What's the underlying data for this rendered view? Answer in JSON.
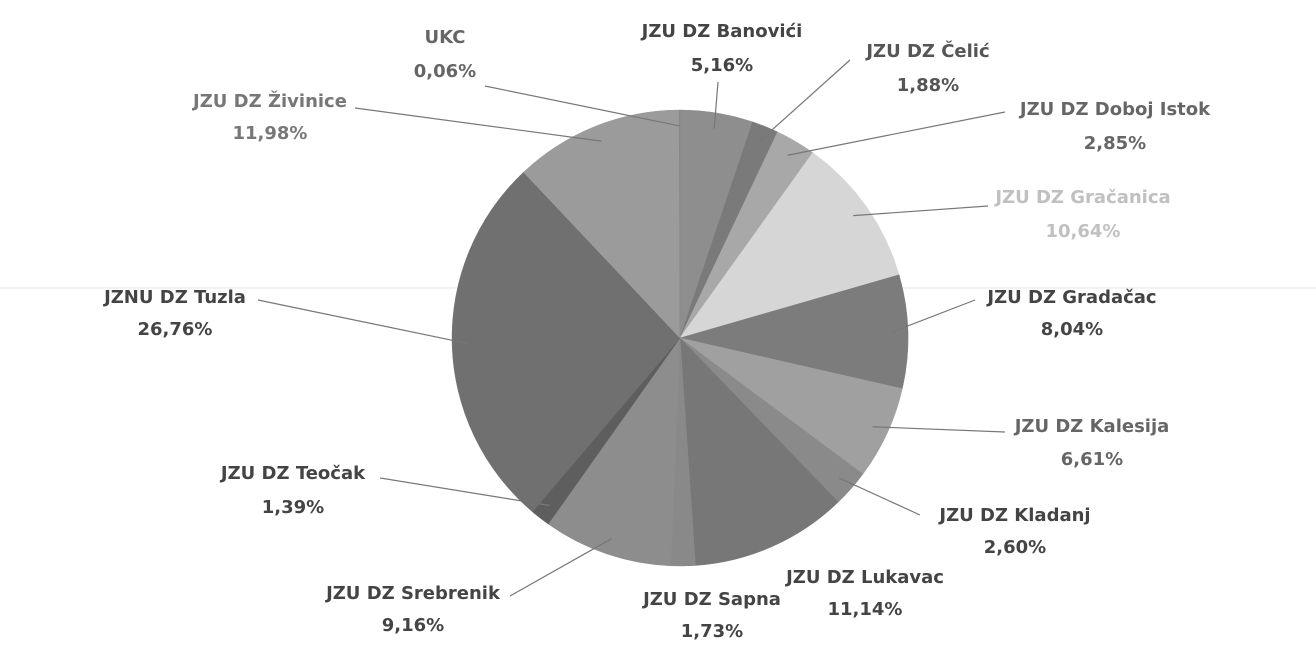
{
  "chart_data": {
    "type": "pie",
    "categories": [
      "JZU DZ Banovići",
      "JZU DZ Čelić",
      "JZU DZ Doboj Istok",
      "JZU DZ Gračanica",
      "JZU DZ Gradačac",
      "JZU DZ Kalesija",
      "JZU DZ Kladanj",
      "JZU DZ Lukavac",
      "JZU DZ Sapna",
      "JZU DZ Srebrenik",
      "JZU DZ Teočak",
      "JZNU DZ Tuzla",
      "JZU DZ Živinice",
      "UKC"
    ],
    "values": [
      5.16,
      1.88,
      2.85,
      10.64,
      8.04,
      6.61,
      2.6,
      11.14,
      1.73,
      9.16,
      1.39,
      26.76,
      11.98,
      0.06
    ],
    "value_labels": [
      "5,16%",
      "1,88%",
      "2,85%",
      "10,64%",
      "8,04%",
      "6,61%",
      "2,60%",
      "11,14%",
      "1,73%",
      "9,16%",
      "1,39%",
      "26,76%",
      "11,98%",
      "0,06%"
    ],
    "colors": [
      "#8e8e8e",
      "#7a7a7a",
      "#a8a8a8",
      "#d6d6d6",
      "#7c7c7c",
      "#a0a0a0",
      "#8a8a8a",
      "#777777",
      "#898989",
      "#8d8d8d",
      "#5e5e5e",
      "#707070",
      "#9b9b9b",
      "#888888"
    ]
  }
}
